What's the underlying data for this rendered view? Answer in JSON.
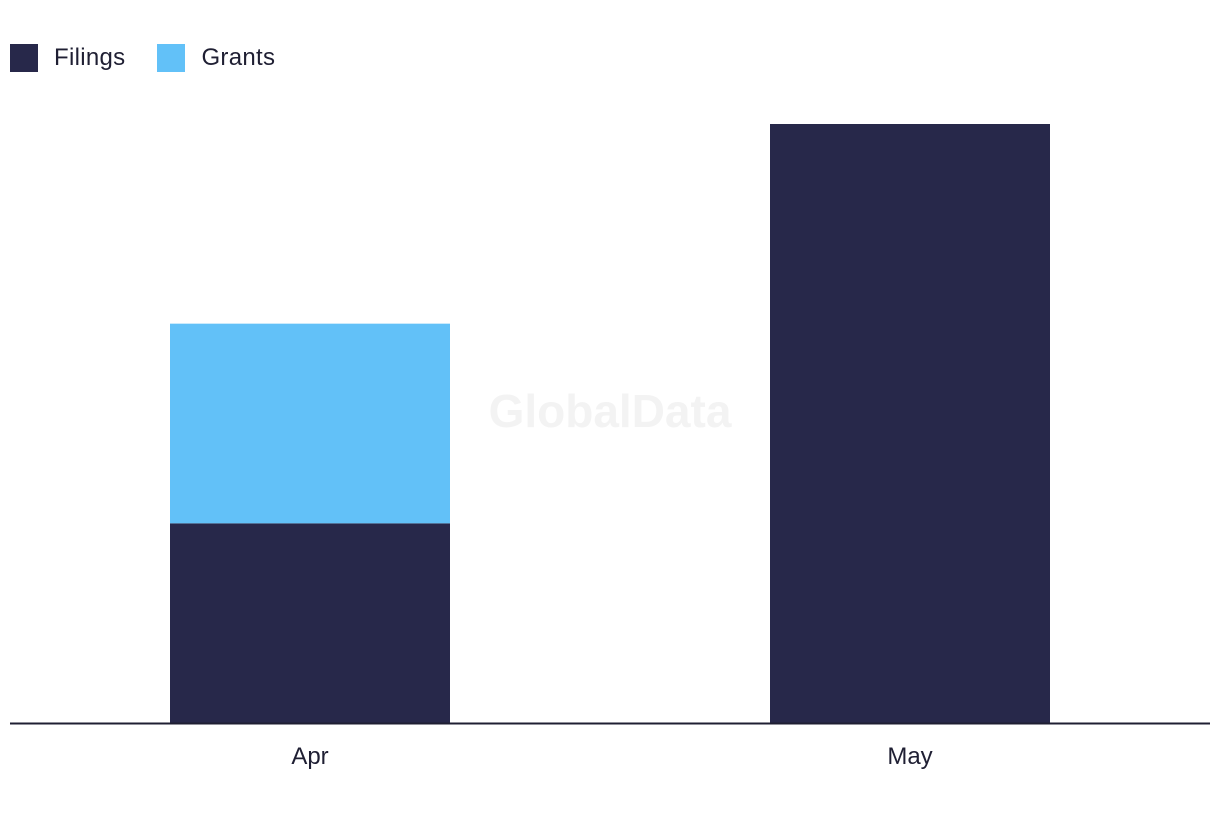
{
  "watermark": "GlobalData",
  "chart_data": {
    "type": "bar",
    "stacked": true,
    "categories": [
      "Apr",
      "May"
    ],
    "series": [
      {
        "name": "Filings",
        "color": "#27284a",
        "values": [
          1,
          3
        ]
      },
      {
        "name": "Grants",
        "color": "#62c1f8",
        "values": [
          1,
          0
        ]
      }
    ],
    "title": "",
    "xlabel": "",
    "ylabel": "",
    "ylim": [
      0,
      3
    ],
    "grid": false,
    "legend": "top-left"
  }
}
